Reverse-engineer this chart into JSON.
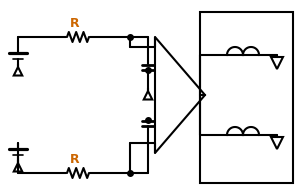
{
  "bg_color": "#ffffff",
  "line_color": "#000000",
  "r_label_color": "#cc6600",
  "r_label": "R",
  "fig_width": 3.0,
  "fig_height": 1.95,
  "dpi": 100
}
